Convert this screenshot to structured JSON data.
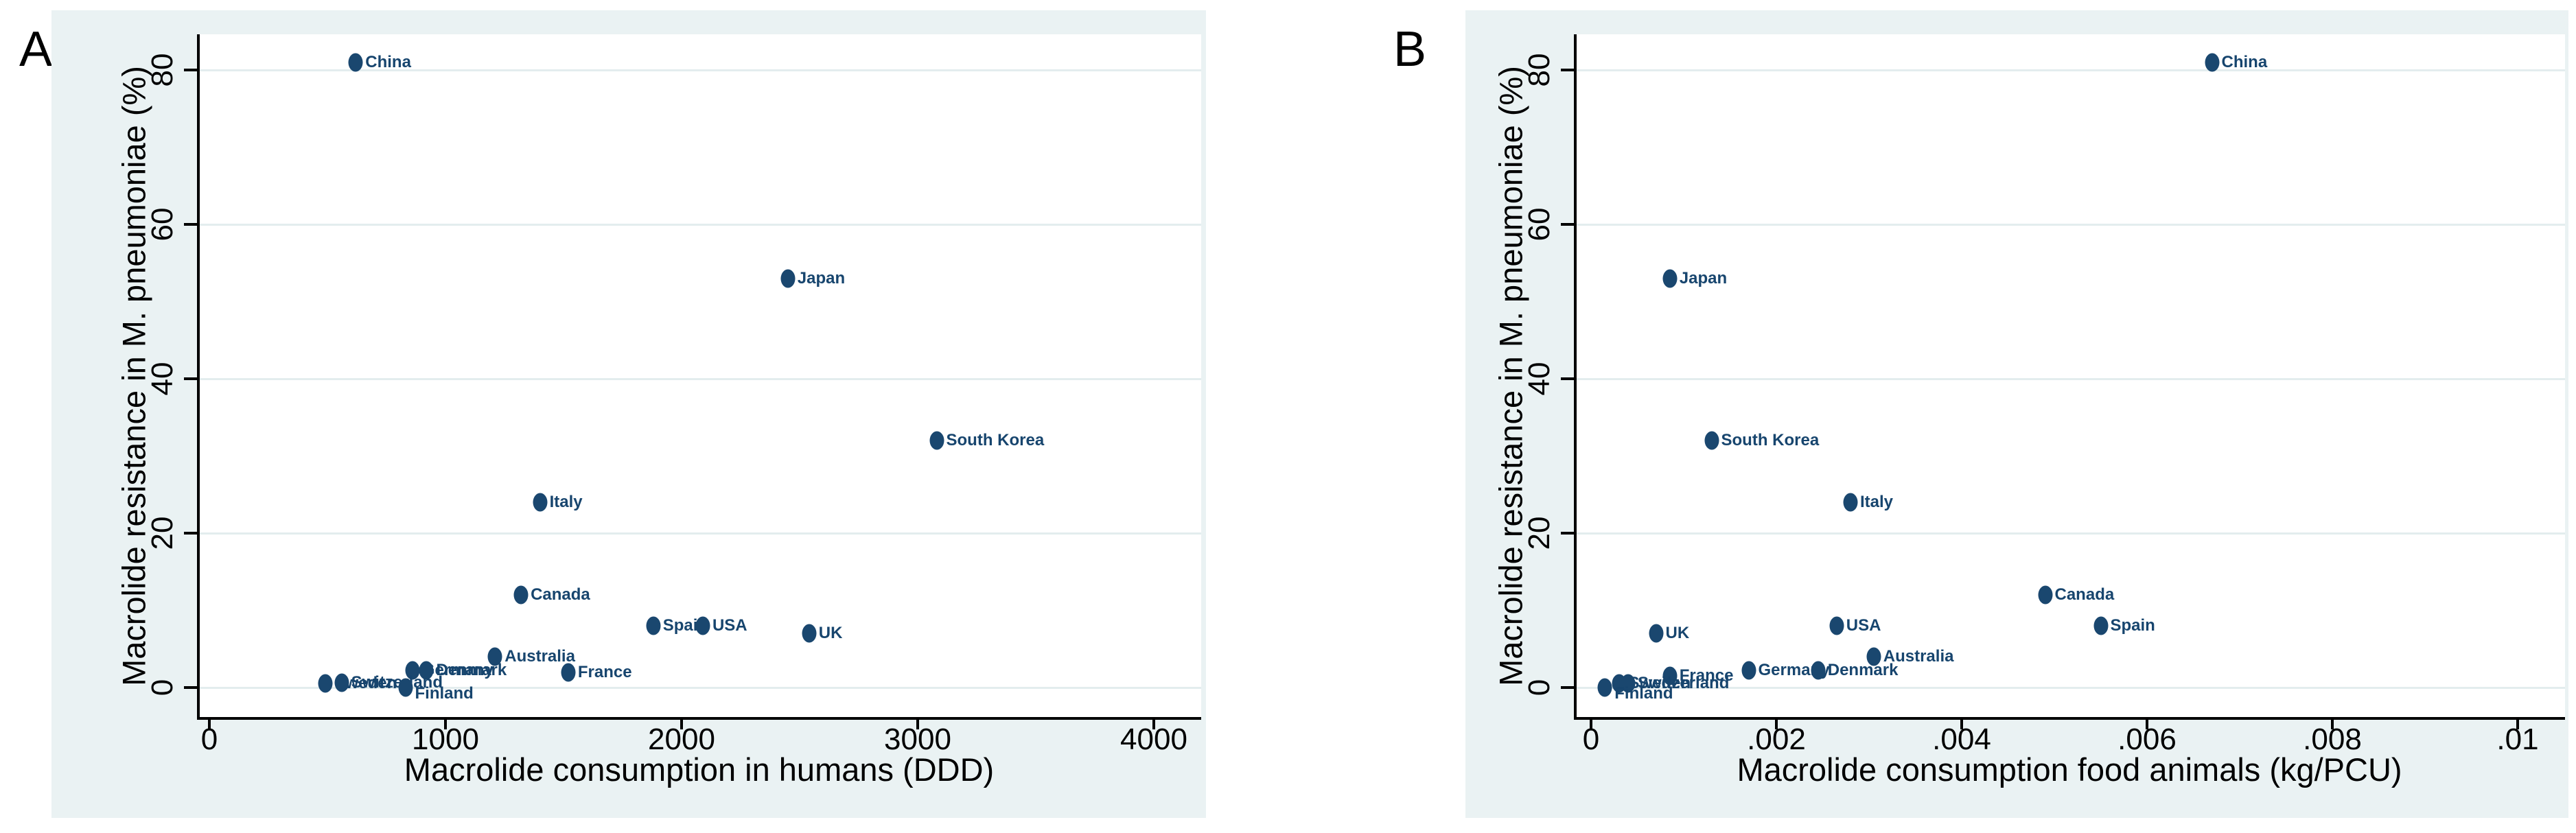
{
  "figure": {
    "panel_letters": [
      "A",
      "B"
    ]
  },
  "colors": {
    "page_background": "#ffffff",
    "panel_background": "#eaf2f3",
    "gridline": "#e3edee",
    "axis": "#000000",
    "marker": "#1a476f",
    "marker_label": "#17456e",
    "tick_text": "#000000"
  },
  "chart_data": [
    {
      "type": "scatter",
      "panel": "A",
      "xlabel": "Macrolide consumption in humans (DDD)",
      "ylabel": "Macrolide resistance in M. pneumoniae (%)",
      "xlim": [
        0,
        4250
      ],
      "ylim": [
        -2,
        84
      ],
      "x_ticks": [
        0,
        1000,
        2000,
        3000,
        4000
      ],
      "x_tick_labels": [
        "0",
        "1000",
        "2000",
        "3000",
        "4000"
      ],
      "y_ticks": [
        0,
        20,
        40,
        60,
        80
      ],
      "y_tick_labels": [
        "0",
        "20",
        "40",
        "60",
        "80"
      ],
      "grid": "horizontal",
      "legend": "none",
      "points": [
        {
          "label": "China",
          "x": 620,
          "y": 81,
          "label_dy": 0
        },
        {
          "label": "Japan",
          "x": 2450,
          "y": 53,
          "label_dy": 0
        },
        {
          "label": "South Korea",
          "x": 3080,
          "y": 32,
          "label_dy": 0
        },
        {
          "label": "Italy",
          "x": 1400,
          "y": 24,
          "label_dy": 0
        },
        {
          "label": "Canada",
          "x": 1320,
          "y": 12,
          "label_dy": 0
        },
        {
          "label": "Spain",
          "x": 1880,
          "y": 8,
          "label_dy": 0
        },
        {
          "label": "USA",
          "x": 2090,
          "y": 8,
          "label_dy": 0
        },
        {
          "label": "UK",
          "x": 2540,
          "y": 7,
          "label_dy": 0
        },
        {
          "label": "Australia",
          "x": 1210,
          "y": 4,
          "label_dy": 0
        },
        {
          "label": "France",
          "x": 1520,
          "y": 2,
          "label_dy": 0
        },
        {
          "label": "Germany",
          "x": 860,
          "y": 2.2,
          "label_dy": 0
        },
        {
          "label": "Denmark",
          "x": 920,
          "y": 2.2,
          "label_dy": 0
        },
        {
          "label": "Sweden",
          "x": 490,
          "y": 0.5,
          "label_dy": 0
        },
        {
          "label": "Switzerland",
          "x": 560,
          "y": 0.6,
          "label_dy": 0
        },
        {
          "label": "Finland",
          "x": 830,
          "y": 0,
          "label_dy": 9
        }
      ]
    },
    {
      "type": "scatter",
      "panel": "B",
      "xlabel": "Macrolide consumption food animals (kg/PCU)",
      "ylabel": "Macrolide resistance in M. pneumoniae (%)",
      "xlim": [
        0,
        0.0105
      ],
      "ylim": [
        -2,
        84
      ],
      "x_ticks": [
        0,
        0.002,
        0.004,
        0.006,
        0.008,
        0.01
      ],
      "x_tick_labels": [
        "0",
        ".002",
        ".004",
        ".006",
        ".008",
        ".01"
      ],
      "y_ticks": [
        0,
        20,
        40,
        60,
        80
      ],
      "y_tick_labels": [
        "0",
        "20",
        "40",
        "60",
        "80"
      ],
      "grid": "horizontal",
      "legend": "none",
      "points": [
        {
          "label": "China",
          "x": 0.0067,
          "y": 81,
          "label_dy": 0
        },
        {
          "label": "Japan",
          "x": 0.00085,
          "y": 53,
          "label_dy": 0
        },
        {
          "label": "South Korea",
          "x": 0.0013,
          "y": 32,
          "label_dy": 0
        },
        {
          "label": "Italy",
          "x": 0.0028,
          "y": 24,
          "label_dy": 0
        },
        {
          "label": "Canada",
          "x": 0.0049,
          "y": 12,
          "label_dy": 0
        },
        {
          "label": "Spain",
          "x": 0.0055,
          "y": 8,
          "label_dy": 0
        },
        {
          "label": "USA",
          "x": 0.00265,
          "y": 8,
          "label_dy": 0
        },
        {
          "label": "UK",
          "x": 0.0007,
          "y": 7,
          "label_dy": 0
        },
        {
          "label": "Australia",
          "x": 0.00305,
          "y": 4,
          "label_dy": 0
        },
        {
          "label": "Germany",
          "x": 0.0017,
          "y": 2.2,
          "label_dy": 0
        },
        {
          "label": "Denmark",
          "x": 0.00245,
          "y": 2.2,
          "label_dy": 0
        },
        {
          "label": "France",
          "x": 0.00085,
          "y": 1.5,
          "label_dy": 0
        },
        {
          "label": "Sweden",
          "x": 0.0003,
          "y": 0.5,
          "label_dy": 0
        },
        {
          "label": "Switzerland",
          "x": 0.0004,
          "y": 0.5,
          "label_dy": 0
        },
        {
          "label": "Finland",
          "x": 0.00015,
          "y": 0,
          "label_dy": 9
        }
      ]
    }
  ]
}
